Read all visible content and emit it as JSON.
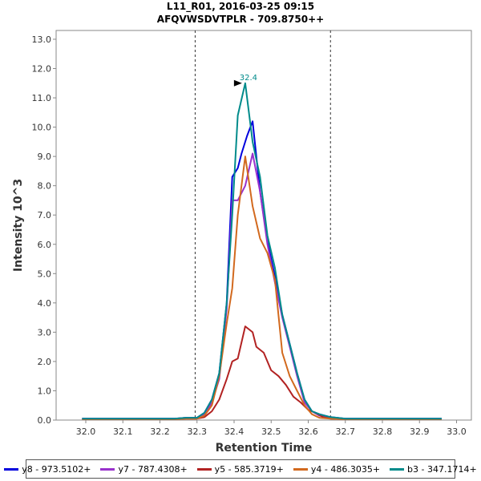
{
  "chart_data": {
    "type": "line",
    "title_line1": "L11_R01, 2016-03-25 09:15",
    "title_line2": "AFQVWSDVTPLR - 709.8750++",
    "xlabel": "Retention Time",
    "ylabel": "Intensity 10^3",
    "xlim": [
      31.92,
      33.04
    ],
    "ylim": [
      0,
      13.3
    ],
    "x_ticks": [
      32.0,
      32.1,
      32.2,
      32.3,
      32.4,
      32.5,
      32.6,
      32.7,
      32.8,
      32.9,
      33.0
    ],
    "x_tick_labels": [
      "32.0",
      "32.1",
      "32.2",
      "32.3",
      "32.4",
      "32.5",
      "32.6",
      "32.7",
      "32.8",
      "32.9",
      "33.0"
    ],
    "y_ticks": [
      0,
      1,
      2,
      3,
      4,
      5,
      6,
      7,
      8,
      9,
      10,
      11,
      12,
      13
    ],
    "y_tick_labels": [
      "0.0",
      "1.0",
      "2.0",
      "3.0",
      "4.0",
      "5.0",
      "6.0",
      "7.0",
      "8.0",
      "9.0",
      "10.0",
      "11.0",
      "12.0",
      "13.0"
    ],
    "boundaries": [
      32.295,
      32.66
    ],
    "peak_annotation": {
      "x": 32.43,
      "y": 11.5,
      "label": "32.4",
      "color": "#008B8B"
    },
    "legend_position": "bottom",
    "series": [
      {
        "name": "y8 - 973.5102+",
        "color": "#0000DD",
        "x": [
          31.99,
          32.0,
          32.03,
          32.06,
          32.09,
          32.12,
          32.15,
          32.18,
          32.21,
          32.24,
          32.27,
          32.3,
          32.32,
          32.34,
          32.36,
          32.38,
          32.395,
          32.41,
          32.42,
          32.435,
          32.45,
          32.47,
          32.49,
          32.51,
          32.53,
          32.55,
          32.57,
          32.59,
          32.61,
          32.63,
          32.66,
          32.7,
          32.75,
          32.8,
          32.85,
          32.9,
          32.93,
          32.96
        ],
        "y": [
          0.05,
          0.05,
          0.05,
          0.05,
          0.05,
          0.05,
          0.05,
          0.05,
          0.05,
          0.05,
          0.08,
          0.08,
          0.25,
          0.7,
          1.6,
          4.0,
          8.3,
          8.6,
          9.1,
          9.7,
          10.2,
          7.8,
          6.1,
          4.9,
          3.6,
          2.6,
          1.6,
          0.7,
          0.3,
          0.2,
          0.1,
          0.05,
          0.05,
          0.05,
          0.05,
          0.05,
          0.05,
          0.05
        ]
      },
      {
        "name": "y7 - 787.4308+",
        "color": "#9932CC",
        "x": [
          31.99,
          32.03,
          32.06,
          32.09,
          32.12,
          32.15,
          32.18,
          32.21,
          32.24,
          32.27,
          32.3,
          32.32,
          32.34,
          32.36,
          32.38,
          32.395,
          32.41,
          32.43,
          32.45,
          32.47,
          32.49,
          32.51,
          32.53,
          32.55,
          32.57,
          32.59,
          32.61,
          32.63,
          32.66,
          32.7,
          32.75,
          32.8,
          32.85,
          32.9,
          32.93,
          32.96
        ],
        "y": [
          0.05,
          0.05,
          0.05,
          0.05,
          0.05,
          0.05,
          0.05,
          0.05,
          0.05,
          0.08,
          0.08,
          0.2,
          0.6,
          1.4,
          3.8,
          7.5,
          7.5,
          8.0,
          9.1,
          7.8,
          6.0,
          4.7,
          3.5,
          2.5,
          1.5,
          0.6,
          0.3,
          0.15,
          0.08,
          0.05,
          0.05,
          0.05,
          0.05,
          0.05,
          0.05,
          0.05
        ]
      },
      {
        "name": "y5 - 585.3719+",
        "color": "#B22222",
        "x": [
          31.99,
          32.03,
          32.06,
          32.09,
          32.12,
          32.15,
          32.18,
          32.21,
          32.24,
          32.27,
          32.3,
          32.32,
          32.34,
          32.36,
          32.38,
          32.395,
          32.41,
          32.43,
          32.45,
          32.46,
          32.48,
          32.5,
          32.52,
          32.54,
          32.56,
          32.58,
          32.6,
          32.62,
          32.64,
          32.66,
          32.7,
          32.75,
          32.8,
          32.85,
          32.9,
          32.93,
          32.96
        ],
        "y": [
          0.03,
          0.03,
          0.03,
          0.03,
          0.03,
          0.03,
          0.03,
          0.03,
          0.03,
          0.05,
          0.05,
          0.1,
          0.3,
          0.7,
          1.4,
          2.0,
          2.1,
          3.2,
          3.0,
          2.5,
          2.3,
          1.7,
          1.5,
          1.2,
          0.8,
          0.6,
          0.35,
          0.25,
          0.1,
          0.05,
          0.03,
          0.03,
          0.03,
          0.03,
          0.03,
          0.03,
          0.03
        ]
      },
      {
        "name": "y4 - 486.3035+",
        "color": "#D2691E",
        "x": [
          31.99,
          32.03,
          32.06,
          32.09,
          32.12,
          32.15,
          32.18,
          32.21,
          32.24,
          32.27,
          32.3,
          32.32,
          32.34,
          32.36,
          32.38,
          32.395,
          32.41,
          32.43,
          32.45,
          32.47,
          32.49,
          32.51,
          32.53,
          32.55,
          32.57,
          32.59,
          32.61,
          32.63,
          32.66,
          32.7,
          32.75,
          32.8,
          32.85,
          32.9,
          32.93,
          32.96
        ],
        "y": [
          0.03,
          0.03,
          0.03,
          0.03,
          0.03,
          0.03,
          0.03,
          0.03,
          0.03,
          0.05,
          0.05,
          0.15,
          0.5,
          1.5,
          3.3,
          4.5,
          7.0,
          9.0,
          7.3,
          6.2,
          5.7,
          4.8,
          2.3,
          1.5,
          1.0,
          0.5,
          0.2,
          0.08,
          0.05,
          0.03,
          0.03,
          0.03,
          0.03,
          0.03,
          0.03,
          0.03
        ]
      },
      {
        "name": "b3 - 347.1714+",
        "color": "#008B8B",
        "x": [
          31.99,
          32.03,
          32.06,
          32.09,
          32.12,
          32.15,
          32.18,
          32.21,
          32.24,
          32.27,
          32.3,
          32.32,
          32.34,
          32.36,
          32.38,
          32.395,
          32.41,
          32.43,
          32.45,
          32.47,
          32.49,
          32.51,
          32.53,
          32.55,
          32.57,
          32.59,
          32.61,
          32.63,
          32.66,
          32.7,
          32.75,
          32.8,
          32.85,
          32.9,
          32.93,
          32.96
        ],
        "y": [
          0.05,
          0.05,
          0.05,
          0.05,
          0.05,
          0.05,
          0.05,
          0.05,
          0.05,
          0.08,
          0.08,
          0.25,
          0.7,
          1.6,
          4.0,
          7.0,
          10.4,
          11.5,
          9.5,
          8.3,
          6.3,
          5.2,
          3.6,
          2.6,
          1.6,
          0.7,
          0.3,
          0.2,
          0.1,
          0.05,
          0.05,
          0.05,
          0.05,
          0.05,
          0.05,
          0.05
        ]
      }
    ]
  }
}
